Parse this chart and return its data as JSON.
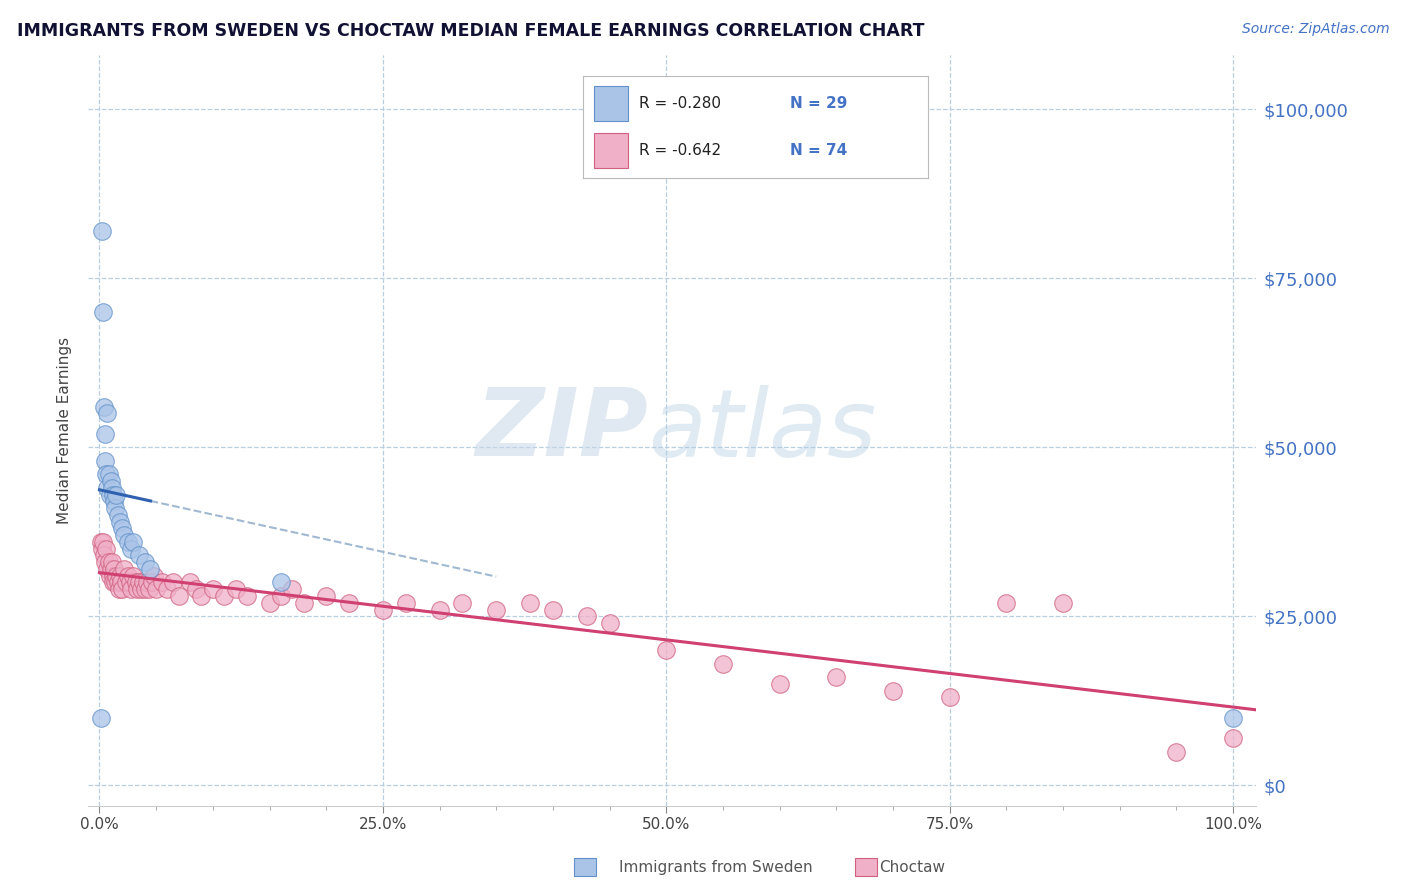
{
  "title": "IMMIGRANTS FROM SWEDEN VS CHOCTAW MEDIAN FEMALE EARNINGS CORRELATION CHART",
  "source_text": "Source: ZipAtlas.com",
  "ylabel": "Median Female Earnings",
  "watermark_zip": "ZIP",
  "watermark_atlas": "atlas",
  "legend_entries": [
    {
      "label": "Immigrants from Sweden",
      "R": "-0.280",
      "N": "29",
      "dot_color": "#aac4e8",
      "dot_edge": "#6090c8",
      "line_color": "#3060b0"
    },
    {
      "label": "Choctaw",
      "R": "-0.642",
      "N": "74",
      "dot_color": "#f0b0c8",
      "dot_edge": "#d06080",
      "line_color": "#d04070"
    }
  ],
  "ytick_labels": [
    "$0",
    "$25,000",
    "$50,000",
    "$75,000",
    "$100,000"
  ],
  "ytick_values": [
    0,
    25000,
    50000,
    75000,
    100000
  ],
  "xtick_labels": [
    "0.0%",
    "",
    "",
    "",
    "",
    "25.0%",
    "",
    "",
    "",
    "",
    "50.0%",
    "",
    "",
    "",
    "",
    "75.0%",
    "",
    "",
    "",
    "",
    "100.0%"
  ],
  "xtick_values": [
    0,
    0.05,
    0.1,
    0.15,
    0.2,
    0.25,
    0.3,
    0.35,
    0.4,
    0.45,
    0.5,
    0.55,
    0.6,
    0.65,
    0.7,
    0.75,
    0.8,
    0.85,
    0.9,
    0.95,
    1.0
  ],
  "xlim": [
    -0.01,
    1.02
  ],
  "ylim": [
    -3000,
    108000
  ],
  "background_color": "#ffffff",
  "grid_color": "#b8cfe0",
  "sweden_x": [
    0.001,
    0.002,
    0.003,
    0.004,
    0.005,
    0.005,
    0.006,
    0.007,
    0.007,
    0.008,
    0.009,
    0.01,
    0.011,
    0.012,
    0.013,
    0.014,
    0.015,
    0.016,
    0.018,
    0.02,
    0.022,
    0.025,
    0.028,
    0.03,
    0.035,
    0.04,
    0.045,
    0.16,
    1.0
  ],
  "sweden_y": [
    10000,
    82000,
    70000,
    56000,
    52000,
    48000,
    46000,
    55000,
    44000,
    46000,
    43000,
    45000,
    44000,
    43000,
    42000,
    41000,
    43000,
    40000,
    39000,
    38000,
    37000,
    36000,
    35000,
    36000,
    34000,
    33000,
    32000,
    30000,
    10000
  ],
  "choctaw_x": [
    0.001,
    0.002,
    0.003,
    0.004,
    0.005,
    0.006,
    0.007,
    0.008,
    0.009,
    0.01,
    0.011,
    0.012,
    0.012,
    0.013,
    0.014,
    0.015,
    0.016,
    0.017,
    0.018,
    0.019,
    0.02,
    0.022,
    0.023,
    0.025,
    0.027,
    0.028,
    0.03,
    0.032,
    0.033,
    0.035,
    0.037,
    0.038,
    0.04,
    0.042,
    0.044,
    0.046,
    0.048,
    0.05,
    0.055,
    0.06,
    0.065,
    0.07,
    0.08,
    0.085,
    0.09,
    0.1,
    0.11,
    0.12,
    0.13,
    0.15,
    0.16,
    0.17,
    0.18,
    0.2,
    0.22,
    0.25,
    0.27,
    0.3,
    0.32,
    0.35,
    0.38,
    0.4,
    0.43,
    0.45,
    0.5,
    0.55,
    0.6,
    0.65,
    0.7,
    0.75,
    0.8,
    0.85,
    0.95,
    1.0
  ],
  "choctaw_y": [
    36000,
    35000,
    36000,
    34000,
    33000,
    35000,
    32000,
    33000,
    31000,
    32000,
    33000,
    31000,
    30000,
    32000,
    30000,
    31000,
    30000,
    29000,
    31000,
    30000,
    29000,
    32000,
    30000,
    31000,
    30000,
    29000,
    31000,
    30000,
    29000,
    30000,
    29000,
    30000,
    29000,
    30000,
    29000,
    30000,
    31000,
    29000,
    30000,
    29000,
    30000,
    28000,
    30000,
    29000,
    28000,
    29000,
    28000,
    29000,
    28000,
    27000,
    28000,
    29000,
    27000,
    28000,
    27000,
    26000,
    27000,
    26000,
    27000,
    26000,
    27000,
    26000,
    25000,
    24000,
    20000,
    18000,
    15000,
    16000,
    14000,
    13000,
    27000,
    27000,
    5000,
    7000
  ]
}
